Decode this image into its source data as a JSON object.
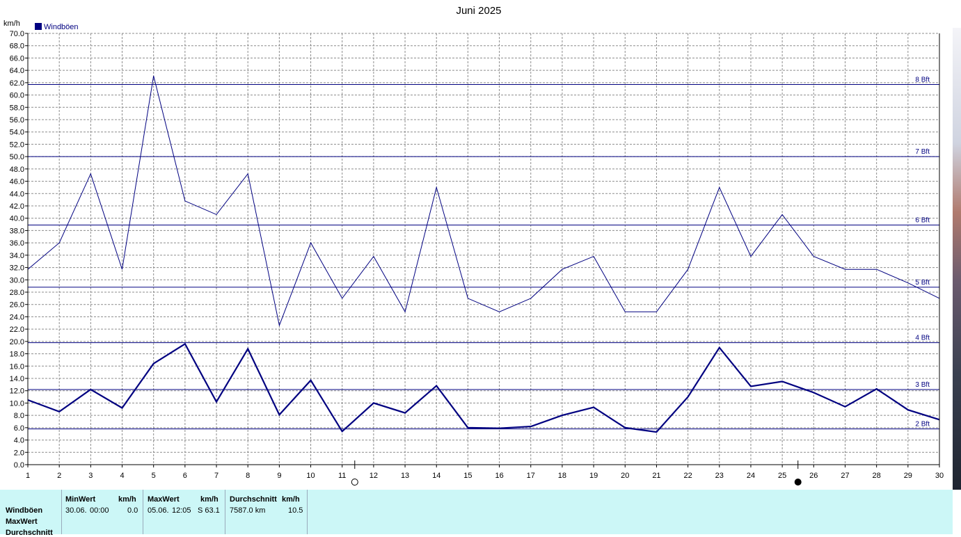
{
  "chart_data": {
    "type": "line",
    "title": "Juni 2025",
    "ylabel": "km/h",
    "xlabel": "",
    "ylim": [
      0,
      70
    ],
    "ytick_step": 2,
    "x": [
      1,
      2,
      3,
      4,
      5,
      6,
      7,
      8,
      9,
      10,
      11,
      12,
      13,
      14,
      15,
      16,
      17,
      18,
      19,
      20,
      21,
      22,
      23,
      24,
      25,
      26,
      27,
      28,
      29,
      30
    ],
    "grid": true,
    "legend_position": "top-left",
    "series": [
      {
        "name": "Windböen",
        "color": "#000080",
        "style": "thin",
        "values": [
          31.7,
          36.0,
          47.2,
          31.7,
          63.1,
          42.8,
          40.6,
          47.2,
          22.6,
          36.0,
          27.0,
          33.8,
          24.8,
          45.0,
          27.0,
          24.8,
          27.0,
          31.7,
          33.8,
          24.8,
          24.8,
          31.7,
          45.0,
          33.8,
          40.6,
          33.8,
          31.7,
          31.7,
          29.5,
          27.0
        ]
      },
      {
        "name": "",
        "color": "#000080",
        "style": "thick",
        "values": [
          10.5,
          8.6,
          12.2,
          9.2,
          16.4,
          19.6,
          10.2,
          18.8,
          8.1,
          13.7,
          5.4,
          10.0,
          8.4,
          12.8,
          6.0,
          5.9,
          6.2,
          8.0,
          9.3,
          6.0,
          5.3,
          11.0,
          19.0,
          12.7,
          13.5,
          11.7,
          9.4,
          12.3,
          8.9,
          7.3
        ]
      }
    ],
    "beaufort_lines": [
      {
        "label": "2 Bft",
        "value": 5.8
      },
      {
        "label": "3 Bft",
        "value": 12.2
      },
      {
        "label": "4 Bft",
        "value": 19.8
      },
      {
        "label": "5 Bft",
        "value": 28.8
      },
      {
        "label": "6 Bft",
        "value": 38.9
      },
      {
        "label": "7 Bft",
        "value": 50.0
      },
      {
        "label": "8 Bft",
        "value": 61.7
      }
    ],
    "moon_markers": [
      {
        "phase": "full",
        "x": 11.4
      },
      {
        "phase": "new",
        "x": 25.5
      }
    ]
  },
  "stats": {
    "row_labels": [
      "Windböen",
      "MaxWert",
      "Durchschnitt"
    ],
    "min": {
      "header": "MinWert",
      "unit": "km/h",
      "date": "30.06.",
      "time": "00:00",
      "value": "0.0"
    },
    "max": {
      "header": "MaxWert",
      "unit": "km/h",
      "date": "05.06.",
      "time": "12:05",
      "value": "S 63.1"
    },
    "avg": {
      "header": "Durchschnitt",
      "unit": "km/h",
      "distance": "7587.0 km",
      "value": "10.5"
    }
  }
}
